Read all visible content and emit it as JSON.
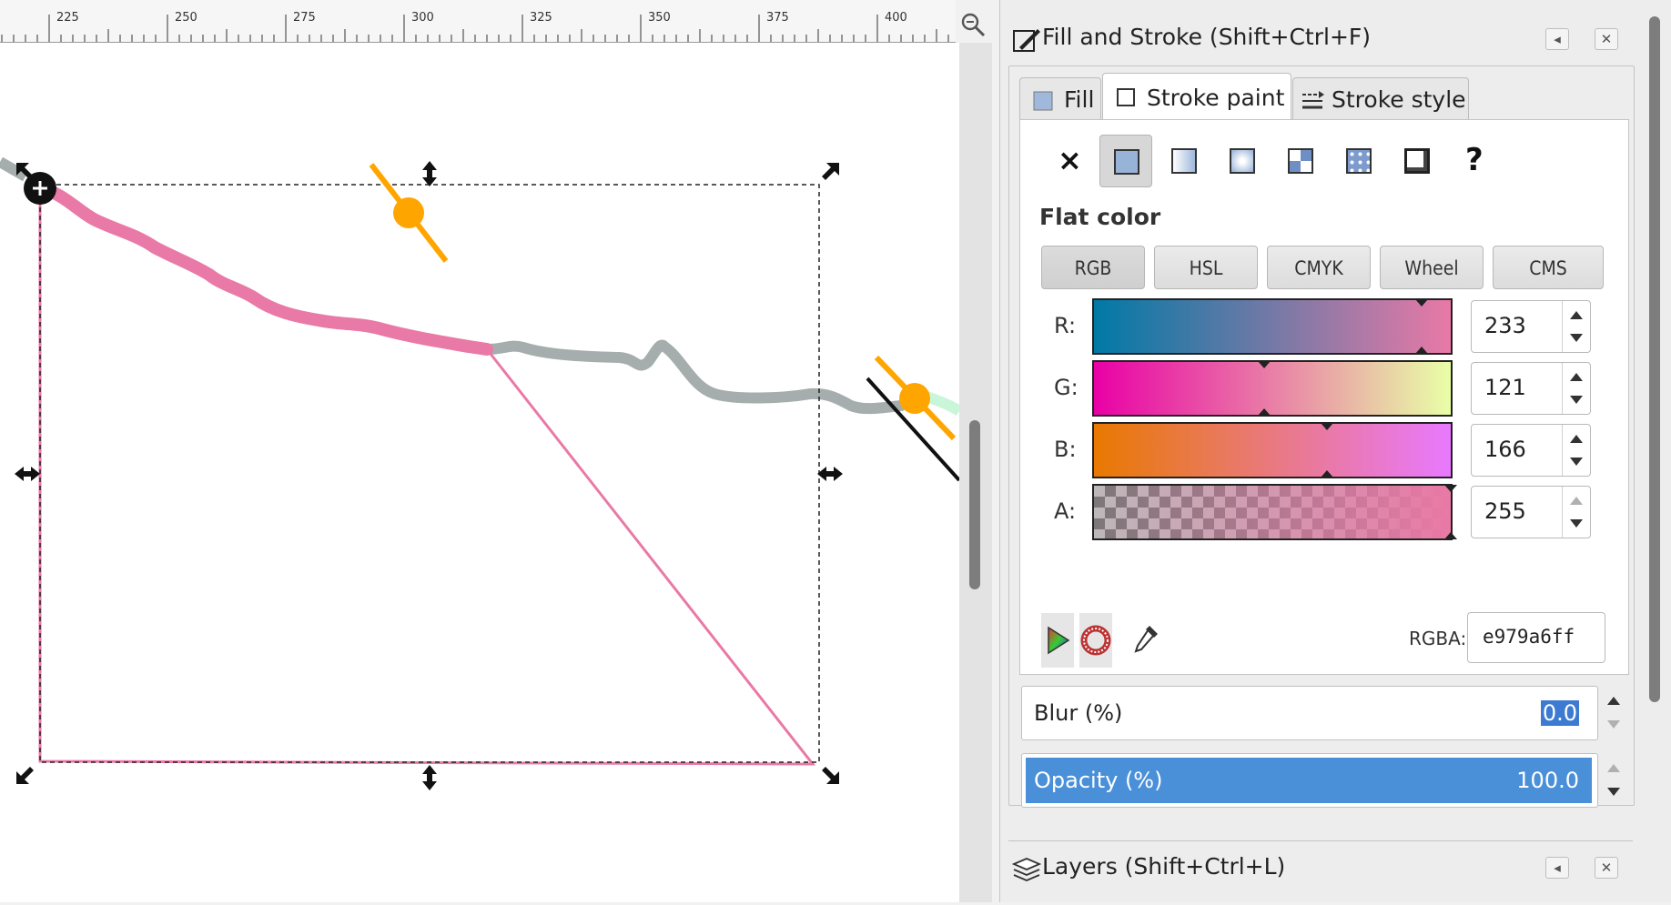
{
  "ruler": {
    "labels": [
      "225",
      "250",
      "275",
      "300",
      "325",
      "350",
      "375",
      "400"
    ]
  },
  "fill_stroke": {
    "title": "Fill and Stroke (Shift+Ctrl+F)",
    "tabs": [
      {
        "label": "Fill",
        "active": false
      },
      {
        "label": "Stroke paint",
        "active": true
      },
      {
        "label": "Stroke style",
        "active": false
      }
    ],
    "paint_modes": [
      "no-paint",
      "flat-color",
      "linear-gradient",
      "radial-gradient",
      "pattern",
      "swatch",
      "mesh",
      "unset"
    ],
    "selected_paint_mode": "flat-color",
    "unset_glyph": "?",
    "section_label": "Flat color",
    "color_modes": [
      "RGB",
      "HSL",
      "CMYK",
      "Wheel",
      "CMS"
    ],
    "active_color_mode": "RGB",
    "channels": [
      {
        "label": "R:",
        "value": "233"
      },
      {
        "label": "G:",
        "value": "121"
      },
      {
        "label": "B:",
        "value": "166"
      },
      {
        "label": "A:",
        "value": "255"
      }
    ],
    "rgba_label": "RGBA:",
    "rgba_value": "e979a6ff",
    "blur_label": "Blur (%)",
    "blur_value": "0.0",
    "opacity_label": "Opacity (%)",
    "opacity_value": "100.0",
    "close_glyph": "✕",
    "collapse_glyph": "◂",
    "no_paint_glyph": "×"
  },
  "layers": {
    "title": "Layers (Shift+Ctrl+L)"
  },
  "colors": {
    "stroke_pink": "#e979a6",
    "gray_path": "#a6adad",
    "handle_orange": "#ffa500",
    "selection_blue": "#4a90d9"
  }
}
